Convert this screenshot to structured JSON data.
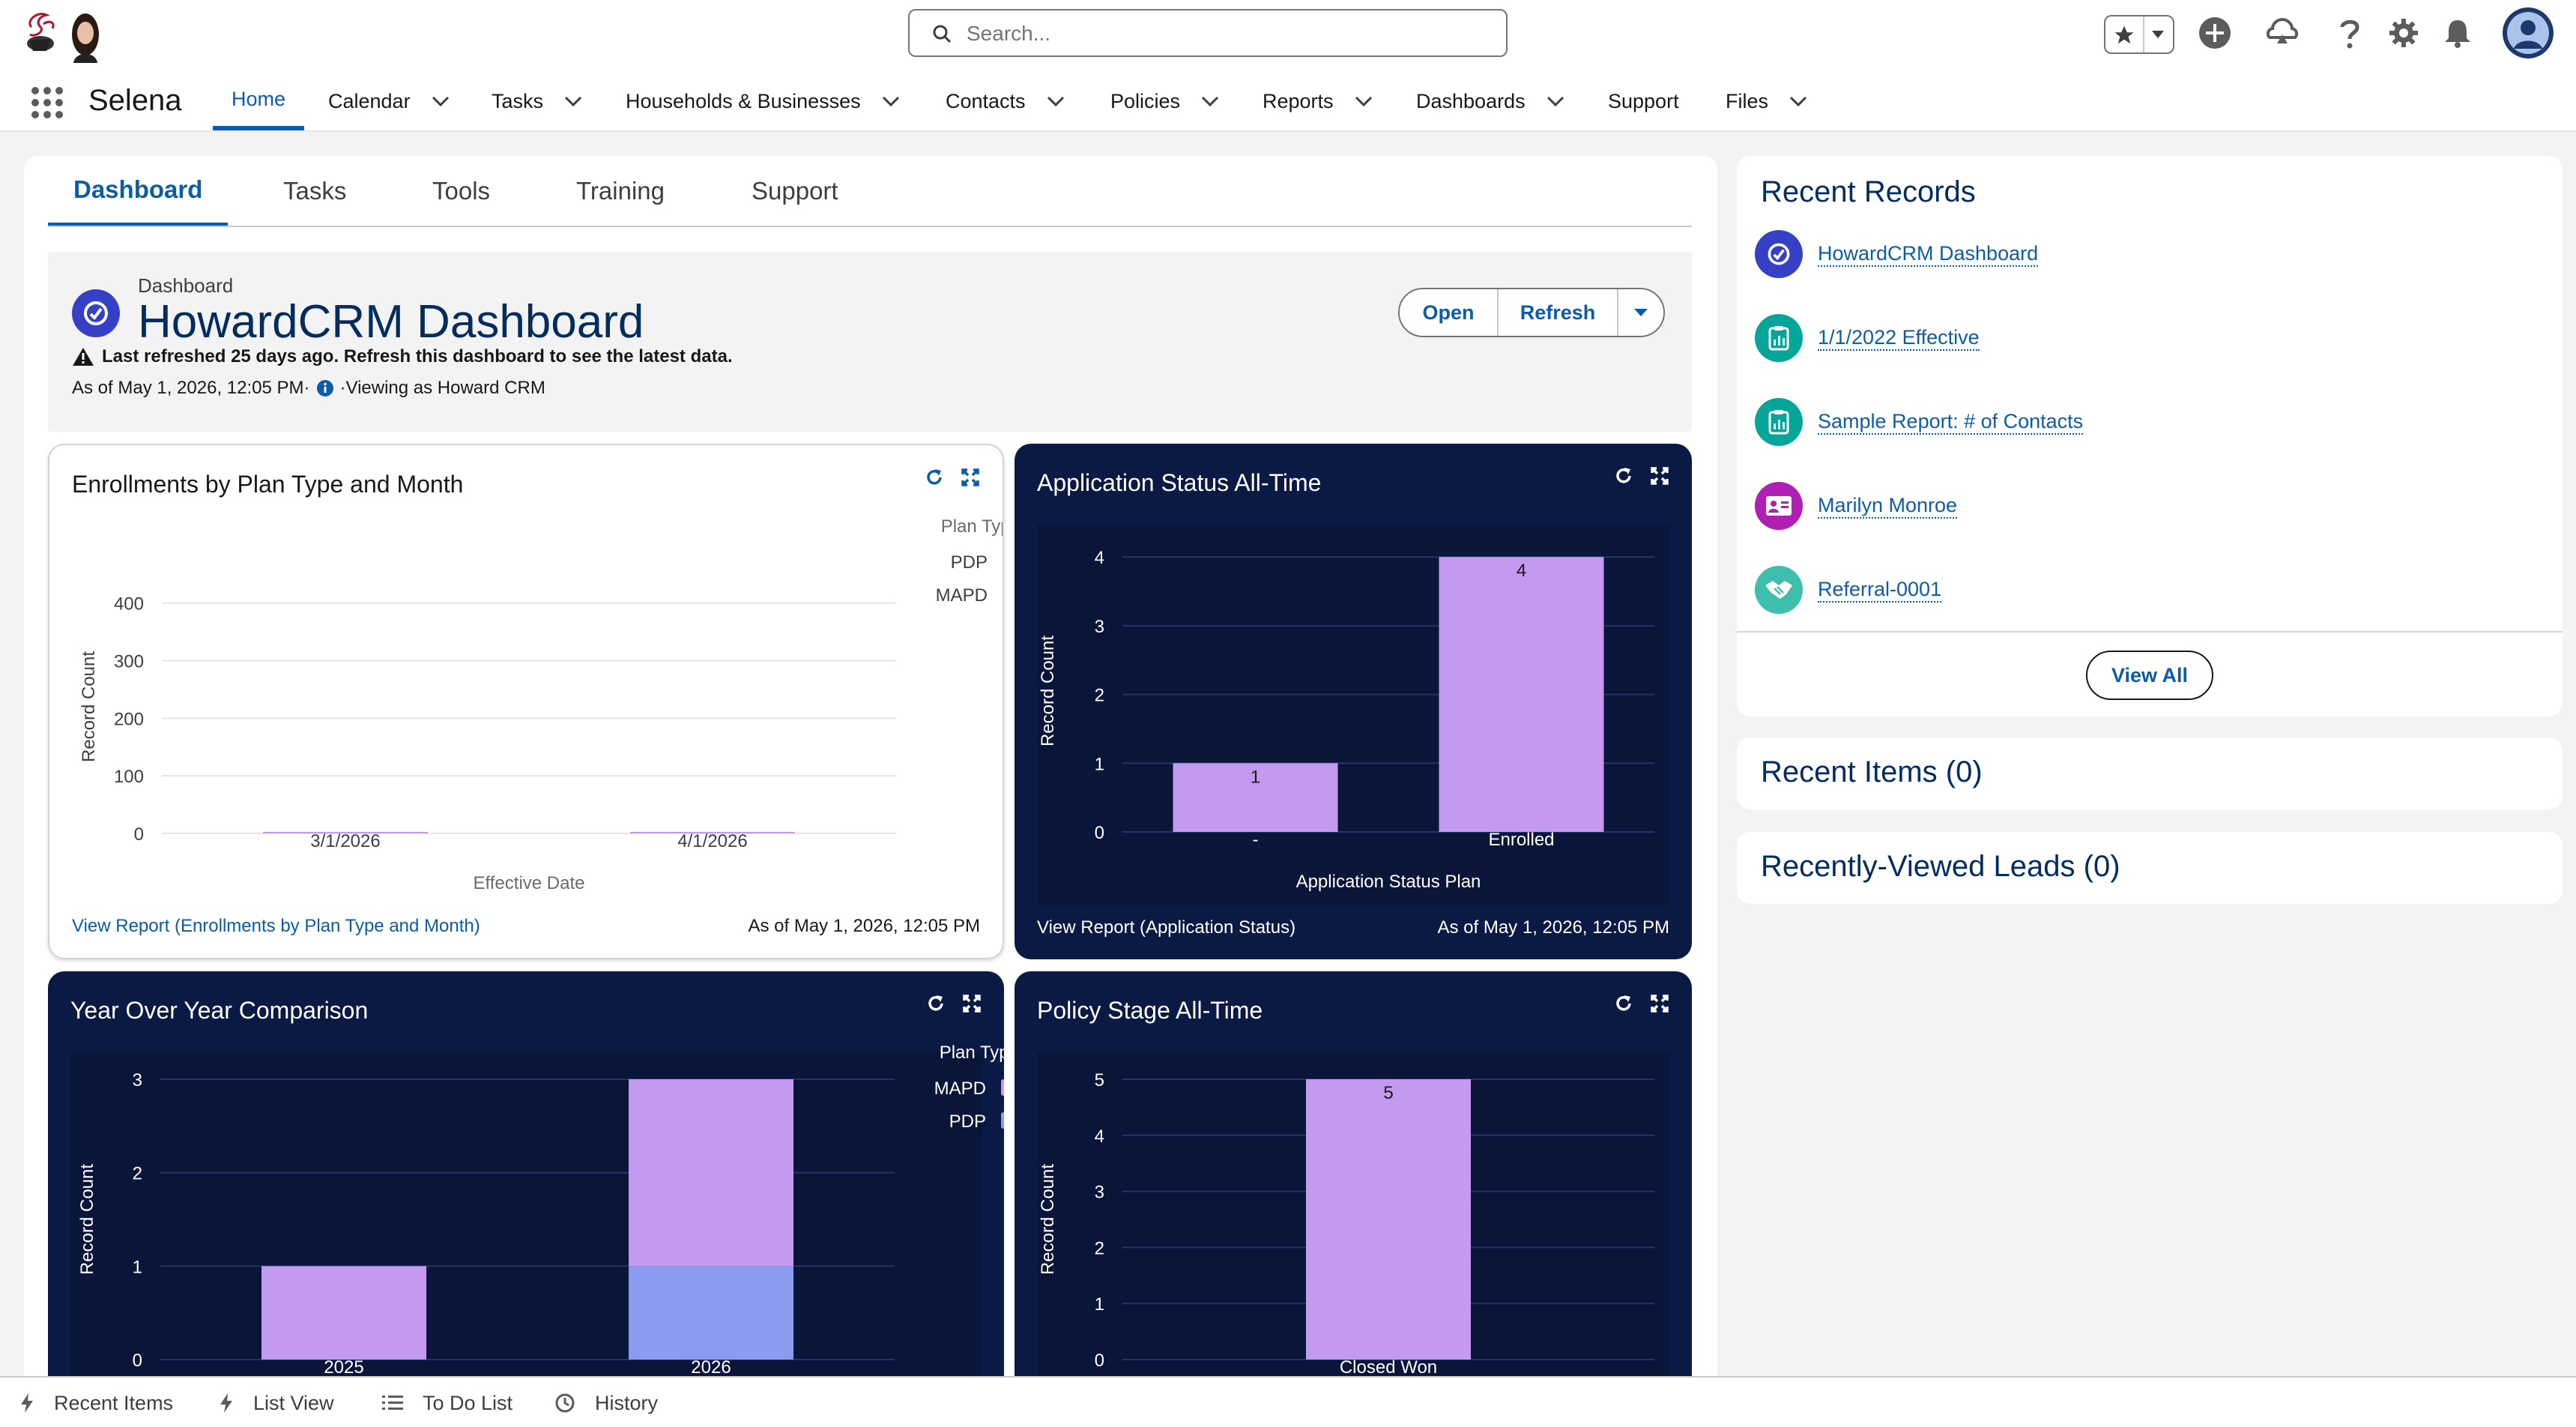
{
  "header": {
    "search_placeholder": "Search...",
    "app_name": "Selena",
    "nav": [
      {
        "label": "Home",
        "has_menu": false
      },
      {
        "label": "Calendar",
        "has_menu": true
      },
      {
        "label": "Tasks",
        "has_menu": true
      },
      {
        "label": "Households & Businesses",
        "has_menu": true
      },
      {
        "label": "Contacts",
        "has_menu": true
      },
      {
        "label": "Policies",
        "has_menu": true
      },
      {
        "label": "Reports",
        "has_menu": true
      },
      {
        "label": "Dashboards",
        "has_menu": true
      },
      {
        "label": "Support",
        "has_menu": false
      },
      {
        "label": "Files",
        "has_menu": true
      }
    ],
    "icons": [
      "favorites-star-icon",
      "favorites-dropdown-icon",
      "global-create-icon",
      "trailhead-icon",
      "help-icon",
      "setup-gear-icon",
      "notifications-bell-icon",
      "user-avatar"
    ]
  },
  "tabs": [
    "Dashboard",
    "Tasks",
    "Tools",
    "Training",
    "Support"
  ],
  "dashboard": {
    "subtitle": "Dashboard",
    "title": "HowardCRM Dashboard",
    "warning": "Last refreshed 25 days ago. Refresh this dashboard to see the latest data.",
    "as_of": "As of May 1, 2026, 12:05 PM·",
    "viewing_as": "·Viewing as Howard CRM",
    "open_label": "Open",
    "refresh_label": "Refresh"
  },
  "cards": [
    {
      "title": "Enrollments by Plan Type and Month",
      "footer_link": "View Report (Enrollments by Plan Type and Month)",
      "footer_time": "As of May 1, 2026, 12:05 PM"
    },
    {
      "title": "Application Status All-Time",
      "footer_link": "View Report (Application Status)",
      "footer_time": "As of May 1, 2026, 12:05 PM"
    },
    {
      "title": "Year Over Year Comparison"
    },
    {
      "title": "Policy Stage All-Time"
    }
  ],
  "chart_data": [
    {
      "type": "bar",
      "stacked": true,
      "title": "Enrollments by Plan Type and Month",
      "xlabel": "Effective Date",
      "ylabel": "Record Count",
      "categories": [
        "3/1/2026",
        "4/1/2026"
      ],
      "series": [
        {
          "name": "PDP",
          "values": [
            0,
            0
          ],
          "color": "#c499f0"
        },
        {
          "name": "MAPD",
          "values": [
            0,
            0
          ],
          "color": "#8a9bf0"
        }
      ],
      "legend_title": "Plan Type",
      "legend_position": "top-right",
      "yticks": [
        0,
        100,
        200,
        300,
        400
      ],
      "ylim": [
        0,
        440
      ],
      "grid": true
    },
    {
      "type": "bar",
      "title": "Application Status All-Time",
      "xlabel": "Application Status Plan",
      "ylabel": "Record Count",
      "categories": [
        "-",
        "Enrolled"
      ],
      "values": [
        1,
        4
      ],
      "data_labels": [
        "1",
        "4"
      ],
      "color": "#c499f0",
      "yticks": [
        0,
        1,
        2,
        3,
        4
      ],
      "ylim": [
        0,
        4.1
      ],
      "grid": true
    },
    {
      "type": "bar",
      "stacked": true,
      "title": "Year Over Year Comparison",
      "ylabel": "Record Count",
      "categories": [
        "2025",
        "2026"
      ],
      "series": [
        {
          "name": "MAPD",
          "values": [
            1,
            2
          ],
          "color": "#c499f0"
        },
        {
          "name": "PDP",
          "values": [
            0,
            1
          ],
          "color": "#8a9bf0"
        }
      ],
      "legend_title": "Plan Type",
      "legend_position": "top-right",
      "yticks": [
        0,
        1,
        2,
        3
      ],
      "ylim": [
        0,
        3
      ],
      "grid": true
    },
    {
      "type": "bar",
      "title": "Policy Stage All-Time",
      "ylabel": "Record Count",
      "categories": [
        "Closed Won"
      ],
      "values": [
        5
      ],
      "data_labels": [
        "5"
      ],
      "color": "#c499f0",
      "yticks": [
        0,
        1,
        2,
        3,
        4,
        5
      ],
      "ylim": [
        0,
        5
      ],
      "grid": true
    }
  ],
  "recent_records": {
    "title": "Recent Records",
    "items": [
      {
        "label": "HowardCRM Dashboard",
        "icon": "dashboard-icon",
        "color": "#3640c5"
      },
      {
        "label": "1/1/2022 Effective",
        "icon": "report-icon",
        "color": "#06a59a"
      },
      {
        "label": "Sample Report: # of Contacts",
        "icon": "report-icon",
        "color": "#06a59a"
      },
      {
        "label": "Marilyn Monroe",
        "icon": "contact-card-icon",
        "color": "#b01fb3"
      },
      {
        "label": "Referral-0001",
        "icon": "handshake-icon",
        "color": "#3ebfad"
      }
    ],
    "view_all": "View All"
  },
  "recent_items": "Recent Items (0)",
  "recent_leads": "Recently-Viewed Leads (0)",
  "utility_bar": [
    {
      "label": "Recent Items",
      "icon": "lightning-icon"
    },
    {
      "label": "List View",
      "icon": "lightning-icon"
    },
    {
      "label": "To Do List",
      "icon": "checklist-icon"
    },
    {
      "label": "History",
      "icon": "clock-icon"
    }
  ]
}
